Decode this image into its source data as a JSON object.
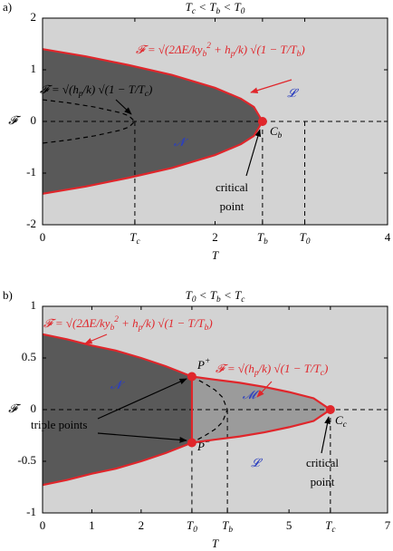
{
  "chart_data": [
    {
      "type": "phase",
      "panel_label": "a)",
      "title": "T_c < T_b < T_0",
      "x_label": "T",
      "y_label": "𝓕",
      "xlim": [
        0,
        4
      ],
      "ylim": [
        -2,
        2
      ],
      "xticks": [
        0,
        {
          "value": 1.07,
          "label": "T_c"
        },
        2,
        {
          "value": 2.55,
          "label": "T_b"
        },
        {
          "value": 3.04,
          "label": "T_0"
        },
        4
      ],
      "yticks": [
        -2,
        -1,
        0,
        1,
        2
      ],
      "background": "#d3d3d3",
      "series": [
        {
          "color": "#e0262b",
          "fill": "#595959",
          "dashed": false,
          "x": [
            0,
            0.5,
            1,
            1.5,
            2,
            2.3,
            2.45,
            2.55,
            2.45,
            2.3,
            2,
            1.5,
            1,
            0.5,
            0
          ],
          "values": [
            1.4,
            1.26,
            1.09,
            0.9,
            0.65,
            0.44,
            0.28,
            0,
            -0.28,
            -0.44,
            -0.65,
            -0.9,
            -1.09,
            -1.26,
            -1.4
          ]
        },
        {
          "color": "#000000",
          "dashed": true,
          "x": [
            0,
            0.3,
            0.6,
            0.9,
            1,
            1.07,
            1,
            0.9,
            0.6,
            0.3,
            0
          ],
          "values": [
            0.42,
            0.36,
            0.28,
            0.17,
            0.11,
            0,
            -0.11,
            -0.17,
            -0.28,
            -0.36,
            -0.42
          ]
        }
      ],
      "guides": [
        {
          "x": [
            0,
            4
          ],
          "values": [
            0,
            0
          ]
        },
        {
          "x": [
            1.07,
            1.07
          ],
          "values": [
            0,
            -2
          ]
        },
        {
          "x": [
            2.55,
            2.55
          ],
          "values": [
            0,
            -2
          ]
        },
        {
          "x": [
            3.04,
            3.04
          ],
          "values": [
            0,
            -2
          ]
        }
      ],
      "points": {
        "color": "#e0262b",
        "x": [
          2.55
        ],
        "values": [
          0
        ]
      },
      "annotations": [
        {
          "text": "𝓕 = √(2ΔE/ky_b^2 + h_p/k) √(1 − T/T_b)",
          "color": "#e0262b"
        },
        {
          "text": "𝓕 = √(h_p/k) √(1 − T/T_c)",
          "color": "#000000"
        },
        {
          "text": "𝓛",
          "color": "#2b3fbf"
        },
        {
          "text": "𝓝",
          "color": "#2b3fbf"
        },
        {
          "text": "C_b",
          "color": "#000000"
        },
        {
          "text": "critical",
          "color": "#000000"
        },
        {
          "text": "point",
          "color": "#000000"
        }
      ]
    },
    {
      "type": "phase",
      "panel_label": "b)",
      "title": "T_0 < T_b < T_c",
      "x_label": "T",
      "y_label": "𝓕",
      "xlim": [
        0,
        7
      ],
      "ylim": [
        -1,
        1
      ],
      "xticks": [
        0,
        1,
        2,
        {
          "value": 3.03,
          "label": "T_0"
        },
        {
          "value": 3.75,
          "label": "T_b"
        },
        5,
        {
          "value": 5.84,
          "label": "T_c"
        },
        7
      ],
      "yticks": [
        -1,
        -0.5,
        0,
        0.5,
        1
      ],
      "background": "#d3d3d3",
      "series": [
        {
          "color": "#e0262b",
          "fill": "#9b9b9b",
          "dashed": false,
          "x": [
            3.03,
            3.5,
            4,
            4.5,
            5,
            5.5,
            5.84,
            5.5,
            5,
            4.5,
            4,
            3.5,
            3.03
          ],
          "values": [
            0.32,
            0.29,
            0.26,
            0.22,
            0.17,
            0.11,
            0,
            -0.11,
            -0.17,
            -0.22,
            -0.26,
            -0.29,
            -0.32
          ]
        },
        {
          "color": "#e0262b",
          "fill": "#595959",
          "dashed": false,
          "x": [
            0,
            0.5,
            1,
            1.5,
            2,
            2.5,
            3.03,
            3.03,
            2.5,
            2,
            1.5,
            1,
            0.5,
            0
          ],
          "values": [
            0.73,
            0.68,
            0.62,
            0.57,
            0.5,
            0.42,
            0.32,
            -0.32,
            -0.42,
            -0.5,
            -0.57,
            -0.62,
            -0.68,
            -0.73
          ]
        },
        {
          "color": "#000000",
          "dashed": true,
          "x": [
            3.03,
            3.3,
            3.5,
            3.65,
            3.75,
            3.65,
            3.5,
            3.3,
            3.03
          ],
          "values": [
            0.32,
            0.25,
            0.19,
            0.12,
            0,
            -0.12,
            -0.19,
            -0.25,
            -0.32
          ]
        }
      ],
      "guides": [
        {
          "x": [
            0,
            7
          ],
          "values": [
            0,
            0
          ]
        },
        {
          "x": [
            3.03,
            3.03
          ],
          "values": [
            -0.32,
            -1
          ]
        },
        {
          "x": [
            3.75,
            3.75
          ],
          "values": [
            0,
            -1
          ]
        },
        {
          "x": [
            5.84,
            5.84
          ],
          "values": [
            0,
            -1
          ]
        }
      ],
      "points": {
        "color": "#e0262b",
        "x": [
          3.03,
          3.03,
          5.84
        ],
        "values": [
          0.32,
          -0.32,
          0
        ]
      },
      "annotations": [
        {
          "text": "𝓕 = √(2ΔE/ky_b^2 + h_p/k) √(1 − T/T_b)",
          "color": "#e0262b"
        },
        {
          "text": "𝓕 = √(h_p/k) √(1 − T/T_c)",
          "color": "#e0262b"
        },
        {
          "text": "𝓝",
          "color": "#2b3fbf"
        },
        {
          "text": "𝓜",
          "color": "#2b3fbf"
        },
        {
          "text": "𝓛",
          "color": "#2b3fbf"
        },
        {
          "text": "P^+",
          "color": "#000000"
        },
        {
          "text": "P^−",
          "color": "#000000"
        },
        {
          "text": "C_c",
          "color": "#000000"
        },
        {
          "text": "triple points",
          "color": "#000000"
        },
        {
          "text": "critical",
          "color": "#000000"
        },
        {
          "text": "point",
          "color": "#000000"
        }
      ]
    }
  ]
}
